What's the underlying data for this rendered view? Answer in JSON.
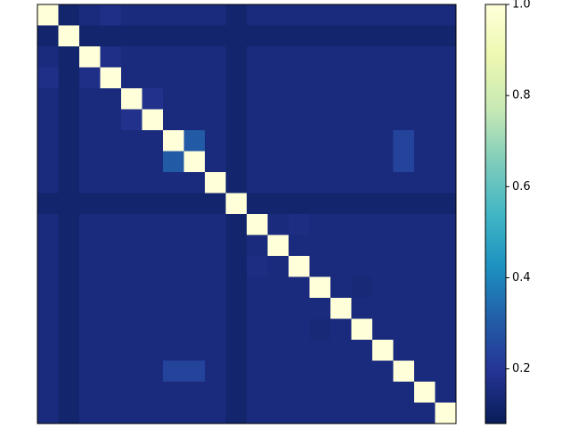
{
  "chart_data": {
    "type": "heatmap",
    "colormap": "YlGnBu",
    "clim": [
      0.08,
      1.0
    ],
    "cticks": [
      0.2,
      0.4,
      0.6,
      0.8,
      {
        "value": 1.0,
        "label": "1.0"
      }
    ],
    "matrix": [
      [
        1,
        0.12,
        0.15,
        0.17,
        0.15,
        0.15,
        0.15,
        0.15,
        0.15,
        0.12,
        0.15,
        0.15,
        0.15,
        0.15,
        0.15,
        0.15,
        0.15,
        0.15,
        0.15,
        0.15
      ],
      [
        0.12,
        1,
        0.12,
        0.12,
        0.12,
        0.12,
        0.12,
        0.12,
        0.12,
        0.12,
        0.12,
        0.12,
        0.12,
        0.12,
        0.12,
        0.12,
        0.12,
        0.12,
        0.12,
        0.12
      ],
      [
        0.15,
        0.12,
        1,
        0.17,
        0.15,
        0.15,
        0.15,
        0.15,
        0.15,
        0.12,
        0.15,
        0.15,
        0.15,
        0.15,
        0.15,
        0.15,
        0.15,
        0.15,
        0.15,
        0.15
      ],
      [
        0.17,
        0.12,
        0.17,
        1,
        0.15,
        0.15,
        0.15,
        0.15,
        0.15,
        0.12,
        0.15,
        0.15,
        0.15,
        0.15,
        0.15,
        0.15,
        0.15,
        0.15,
        0.15,
        0.15
      ],
      [
        0.15,
        0.12,
        0.15,
        0.15,
        1,
        0.18,
        0.15,
        0.15,
        0.15,
        0.12,
        0.15,
        0.15,
        0.15,
        0.15,
        0.15,
        0.15,
        0.15,
        0.15,
        0.15,
        0.15
      ],
      [
        0.15,
        0.12,
        0.15,
        0.15,
        0.18,
        1,
        0.15,
        0.15,
        0.15,
        0.12,
        0.15,
        0.15,
        0.15,
        0.15,
        0.15,
        0.15,
        0.15,
        0.15,
        0.15,
        0.15
      ],
      [
        0.15,
        0.12,
        0.15,
        0.15,
        0.15,
        0.15,
        1,
        0.3,
        0.15,
        0.12,
        0.15,
        0.15,
        0.15,
        0.15,
        0.15,
        0.15,
        0.15,
        0.24,
        0.15,
        0.15
      ],
      [
        0.15,
        0.12,
        0.15,
        0.15,
        0.15,
        0.15,
        0.3,
        1,
        0.15,
        0.12,
        0.15,
        0.15,
        0.15,
        0.15,
        0.15,
        0.15,
        0.15,
        0.24,
        0.15,
        0.15
      ],
      [
        0.15,
        0.12,
        0.15,
        0.15,
        0.15,
        0.15,
        0.15,
        0.15,
        1,
        0.12,
        0.15,
        0.15,
        0.15,
        0.15,
        0.15,
        0.15,
        0.15,
        0.15,
        0.15,
        0.15
      ],
      [
        0.12,
        0.12,
        0.12,
        0.12,
        0.12,
        0.12,
        0.12,
        0.12,
        0.12,
        1,
        0.12,
        0.12,
        0.12,
        0.12,
        0.12,
        0.12,
        0.12,
        0.12,
        0.12,
        0.12
      ],
      [
        0.15,
        0.12,
        0.15,
        0.15,
        0.15,
        0.15,
        0.15,
        0.15,
        0.15,
        0.12,
        1,
        0.15,
        0.16,
        0.15,
        0.15,
        0.15,
        0.15,
        0.15,
        0.15,
        0.15
      ],
      [
        0.15,
        0.12,
        0.15,
        0.15,
        0.15,
        0.15,
        0.15,
        0.15,
        0.15,
        0.12,
        0.15,
        1,
        0.15,
        0.15,
        0.15,
        0.15,
        0.15,
        0.15,
        0.15,
        0.15
      ],
      [
        0.15,
        0.12,
        0.15,
        0.15,
        0.15,
        0.15,
        0.15,
        0.15,
        0.15,
        0.12,
        0.16,
        0.15,
        1,
        0.15,
        0.15,
        0.15,
        0.15,
        0.15,
        0.15,
        0.15
      ],
      [
        0.15,
        0.12,
        0.15,
        0.15,
        0.15,
        0.15,
        0.15,
        0.15,
        0.15,
        0.12,
        0.15,
        0.15,
        0.15,
        1,
        0.15,
        0.14,
        0.15,
        0.15,
        0.15,
        0.15
      ],
      [
        0.15,
        0.12,
        0.15,
        0.15,
        0.15,
        0.15,
        0.15,
        0.15,
        0.15,
        0.12,
        0.15,
        0.15,
        0.15,
        0.15,
        1,
        0.15,
        0.15,
        0.15,
        0.15,
        0.15
      ],
      [
        0.15,
        0.12,
        0.15,
        0.15,
        0.15,
        0.15,
        0.15,
        0.15,
        0.15,
        0.12,
        0.15,
        0.15,
        0.15,
        0.14,
        0.15,
        1,
        0.15,
        0.15,
        0.15,
        0.15
      ],
      [
        0.15,
        0.12,
        0.15,
        0.15,
        0.15,
        0.15,
        0.15,
        0.15,
        0.15,
        0.12,
        0.15,
        0.15,
        0.15,
        0.15,
        0.15,
        0.15,
        1,
        0.15,
        0.15,
        0.15
      ],
      [
        0.15,
        0.12,
        0.15,
        0.15,
        0.15,
        0.15,
        0.24,
        0.24,
        0.15,
        0.12,
        0.15,
        0.15,
        0.15,
        0.15,
        0.15,
        0.15,
        0.15,
        1,
        0.15,
        0.15
      ],
      [
        0.15,
        0.12,
        0.15,
        0.15,
        0.15,
        0.15,
        0.15,
        0.15,
        0.15,
        0.12,
        0.15,
        0.15,
        0.15,
        0.15,
        0.15,
        0.15,
        0.15,
        0.15,
        1,
        0.15
      ],
      [
        0.15,
        0.12,
        0.15,
        0.15,
        0.15,
        0.15,
        0.15,
        0.15,
        0.15,
        0.12,
        0.15,
        0.15,
        0.15,
        0.15,
        0.15,
        0.15,
        0.15,
        0.15,
        0.15,
        1
      ]
    ]
  }
}
